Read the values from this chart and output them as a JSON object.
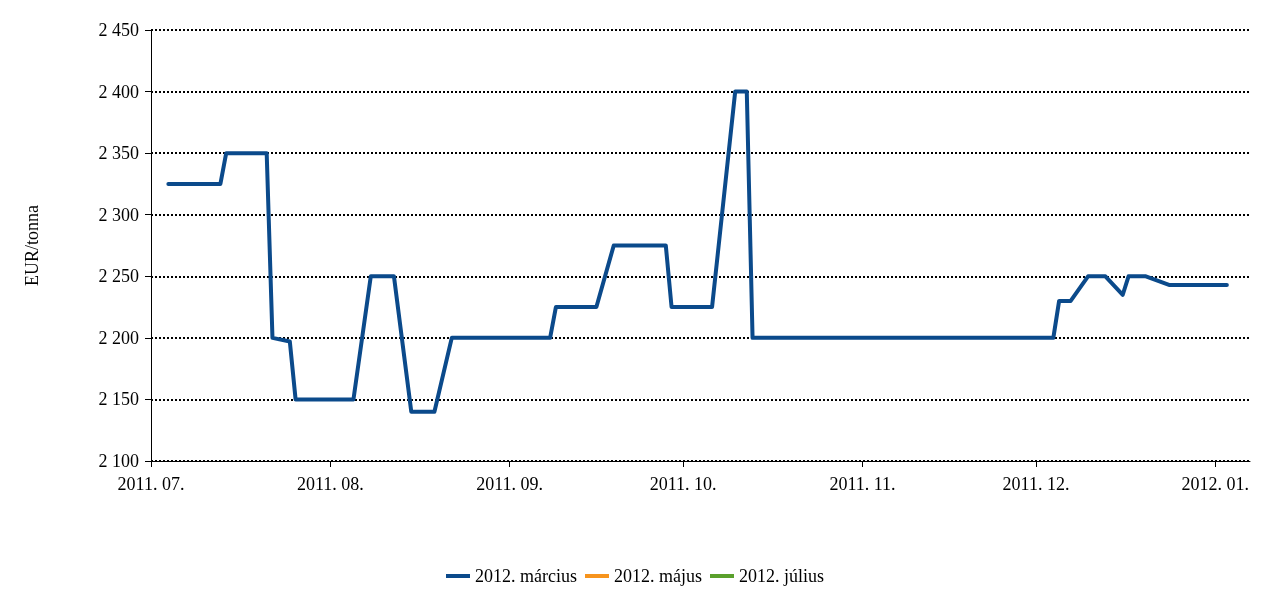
{
  "chart_data": {
    "type": "line",
    "ylabel": "EUR/tonna",
    "x": [
      "2011-07-04",
      "2011-07-13",
      "2011-07-14",
      "2011-07-21",
      "2011-07-22",
      "2011-07-25",
      "2011-07-26",
      "2011-08-05",
      "2011-08-08",
      "2011-08-12",
      "2011-08-15",
      "2011-08-19",
      "2011-08-22",
      "2011-09-08",
      "2011-09-09",
      "2011-09-16",
      "2011-09-19",
      "2011-09-28",
      "2011-09-29",
      "2011-10-06",
      "2011-10-10",
      "2011-10-12",
      "2011-10-13",
      "2011-12-04",
      "2011-12-05",
      "2011-12-07",
      "2011-12-10",
      "2011-12-13",
      "2011-12-16",
      "2011-12-17",
      "2011-12-20",
      "2011-12-24",
      "2012-01-03"
    ],
    "series": [
      {
        "name": "2012. március",
        "color": "#0b4a8b",
        "values": [
          2325,
          2325,
          2350,
          2350,
          2200,
          2197,
          2150,
          2150,
          2250,
          2250,
          2140,
          2140,
          2200,
          2200,
          2225,
          2225,
          2275,
          2275,
          2225,
          2225,
          2400,
          2400,
          2200,
          2200,
          2230,
          2230,
          2250,
          2250,
          2235,
          2250,
          2250,
          2243,
          2243
        ]
      },
      {
        "name": "2012. május",
        "color": "#f7941d",
        "values": [
          null,
          null,
          null,
          null,
          null,
          null,
          null,
          null,
          null,
          null,
          null,
          null,
          null,
          null,
          null,
          null,
          null,
          null,
          null,
          null,
          null,
          null,
          null,
          null,
          null,
          null,
          null,
          null,
          null,
          null,
          null,
          null,
          null
        ]
      },
      {
        "name": "2012. július",
        "color": "#5aa02c",
        "values": [
          null,
          null,
          null,
          null,
          null,
          null,
          null,
          null,
          null,
          null,
          null,
          null,
          null,
          null,
          null,
          null,
          null,
          null,
          null,
          null,
          null,
          null,
          null,
          null,
          null,
          null,
          null,
          null,
          null,
          null,
          null,
          null,
          null
        ]
      }
    ],
    "xlim": [
      "2011-07-01",
      "2012-01-07"
    ],
    "xticks": [
      {
        "value": "2011-07-01",
        "label": "2011. 07."
      },
      {
        "value": "2011-08-01",
        "label": "2011. 08."
      },
      {
        "value": "2011-09-01",
        "label": "2011. 09."
      },
      {
        "value": "2011-10-01",
        "label": "2011. 10."
      },
      {
        "value": "2011-11-01",
        "label": "2011. 11."
      },
      {
        "value": "2011-12-01",
        "label": "2011. 12."
      },
      {
        "value": "2012-01-01",
        "label": "2012. 01."
      }
    ],
    "ylim": [
      2100,
      2450
    ],
    "yticks": [
      {
        "value": 2100,
        "label": "2 100"
      },
      {
        "value": 2150,
        "label": "2 150"
      },
      {
        "value": 2200,
        "label": "2 200"
      },
      {
        "value": 2250,
        "label": "2 250"
      },
      {
        "value": 2300,
        "label": "2 300"
      },
      {
        "value": 2350,
        "label": "2 350"
      },
      {
        "value": 2400,
        "label": "2 400"
      },
      {
        "value": 2450,
        "label": "2 450"
      }
    ],
    "grid": "y",
    "legend": "bottom",
    "marker": "none",
    "line_style": "solid"
  }
}
